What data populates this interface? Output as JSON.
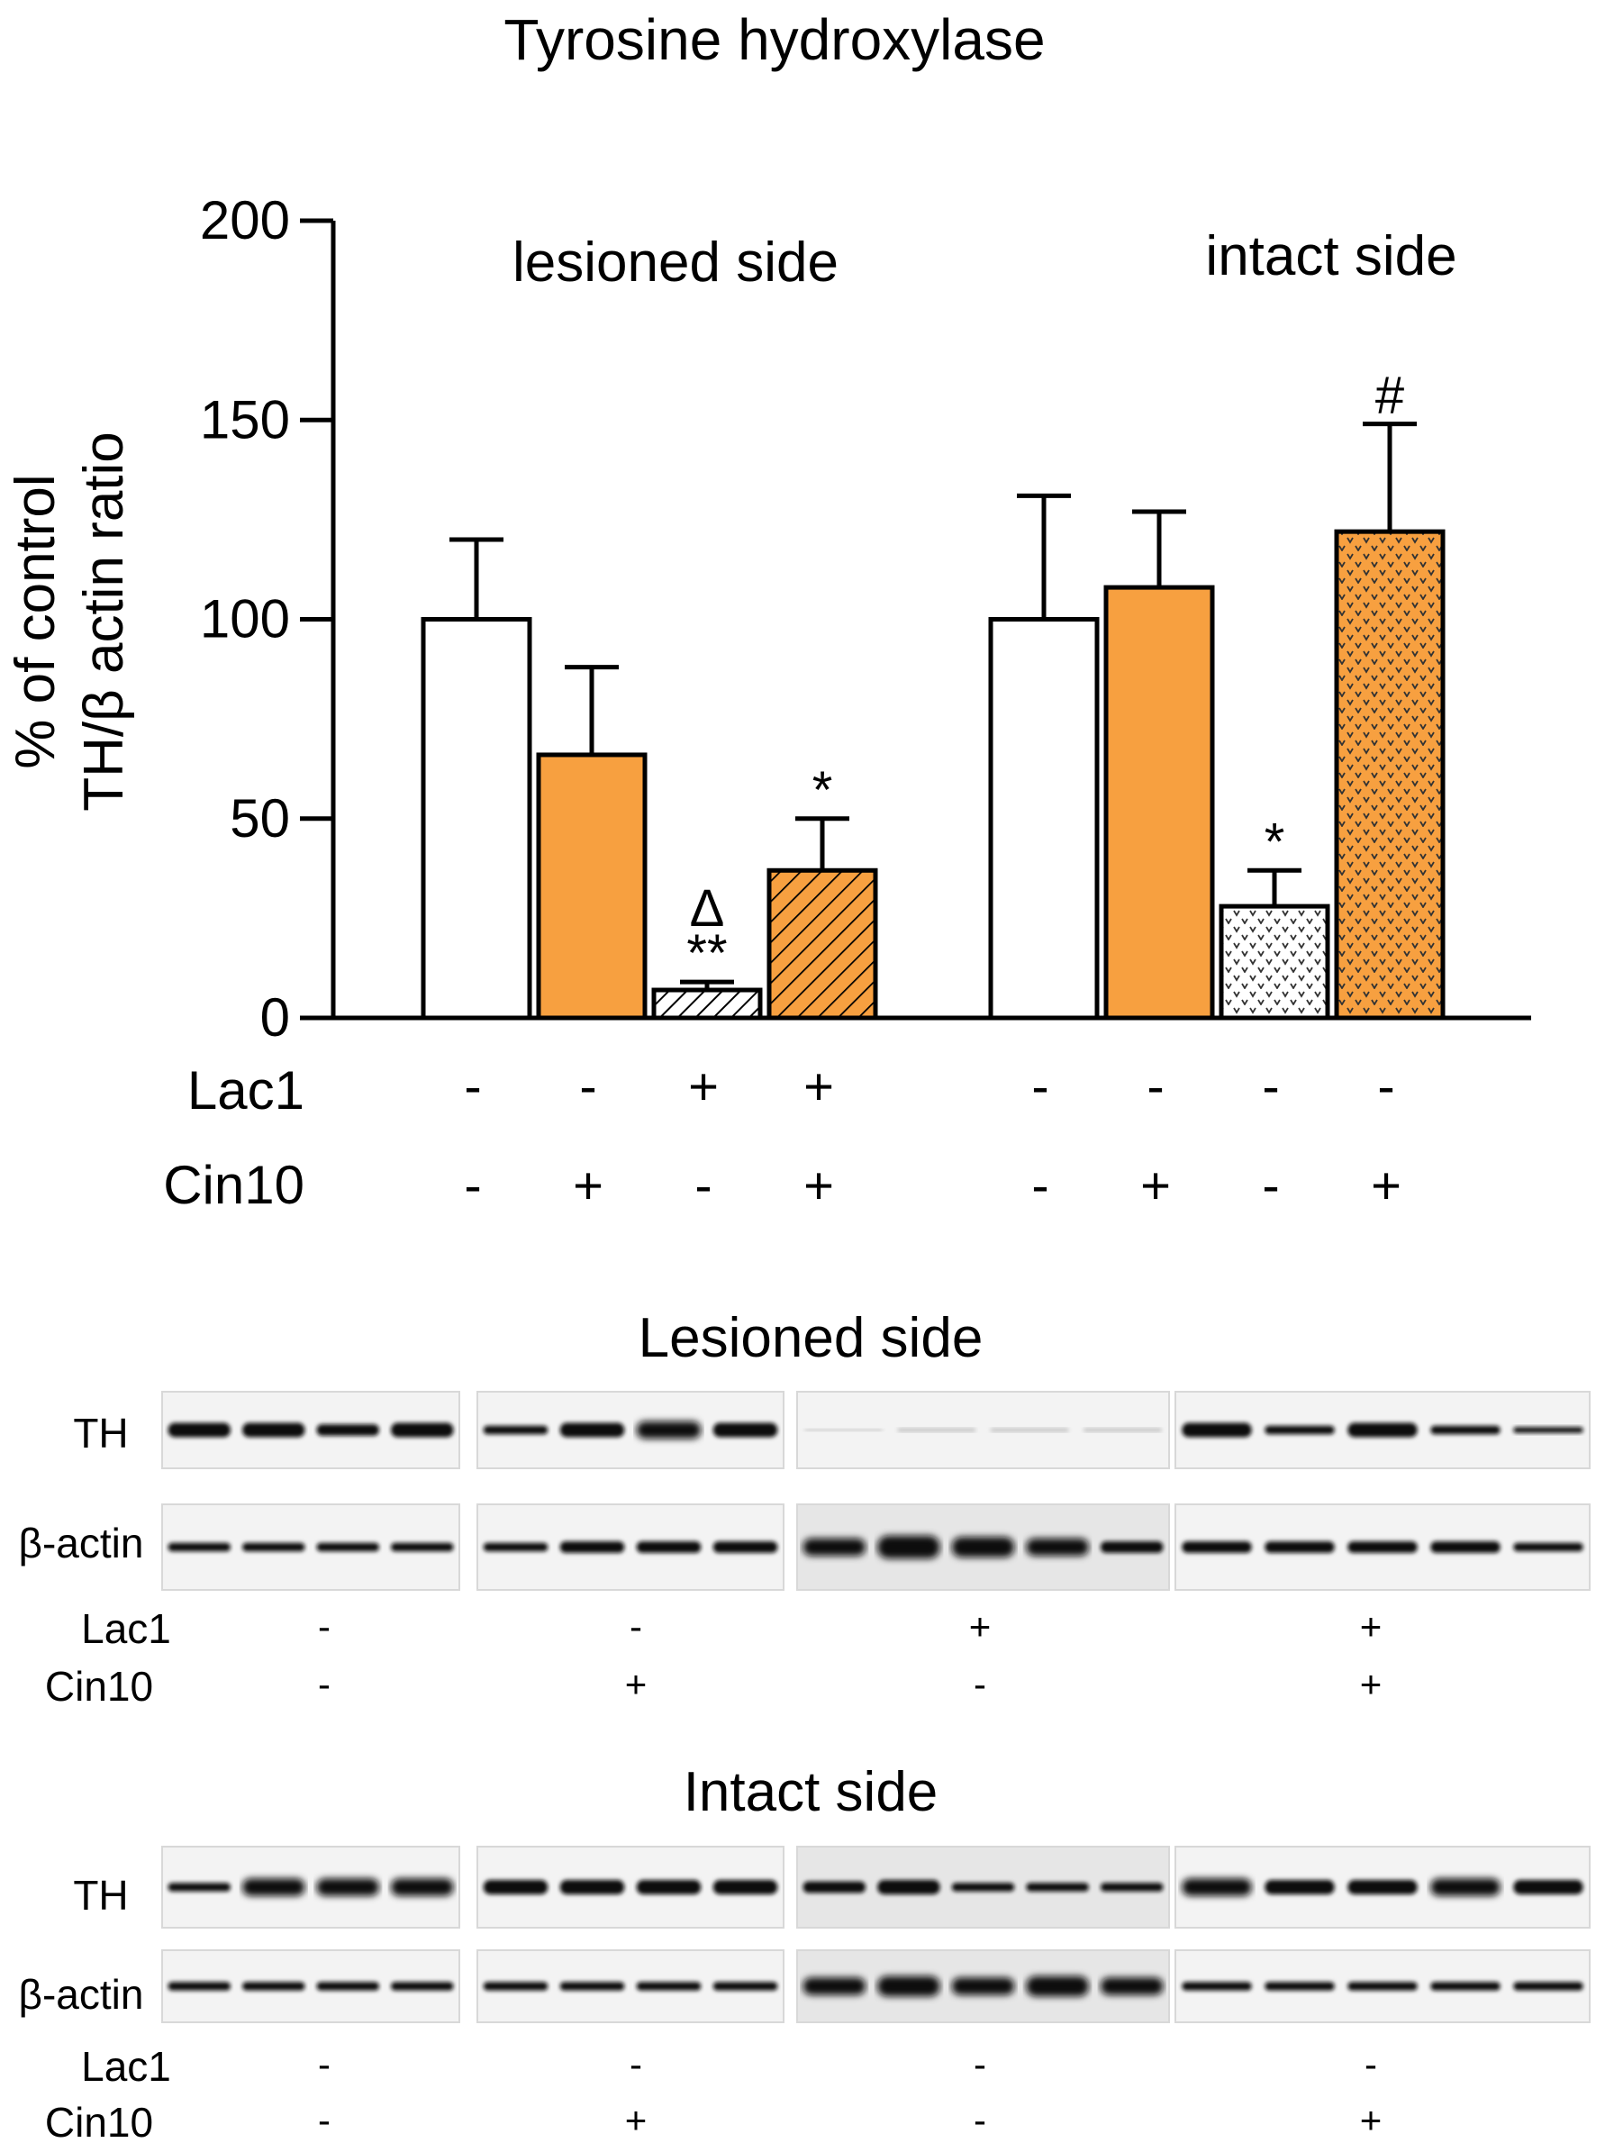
{
  "chart_data": {
    "type": "bar",
    "title": "Tyrosine hydroxylase",
    "ylabel": [
      "% of control",
      "TH/β actin ratio"
    ],
    "ylim": [
      0,
      200
    ],
    "yticks": [
      0,
      50,
      100,
      150,
      200
    ],
    "grid": false,
    "groups": [
      {
        "label": "lesioned side",
        "bars": [
          {
            "value": 100,
            "error": 20,
            "color": "#ffffff",
            "pattern": "none",
            "lac1": "-",
            "cin10": "-",
            "sig": ""
          },
          {
            "value": 66,
            "error": 22,
            "color": "#f7a040",
            "pattern": "none",
            "lac1": "-",
            "cin10": "+",
            "sig": ""
          },
          {
            "value": 7,
            "error": 2,
            "color": "#ffffff",
            "pattern": "diagonal",
            "lac1": "+",
            "cin10": "-",
            "sig": "**",
            "sig2": "Δ"
          },
          {
            "value": 37,
            "error": 13,
            "color": "#f7a040",
            "pattern": "diagonal",
            "lac1": "+",
            "cin10": "+",
            "sig": "*"
          }
        ]
      },
      {
        "label": "intact side",
        "bars": [
          {
            "value": 100,
            "error": 31,
            "color": "#ffffff",
            "pattern": "none",
            "lac1": "-",
            "cin10": "-",
            "sig": ""
          },
          {
            "value": 108,
            "error": 19,
            "color": "#f7a040",
            "pattern": "none",
            "lac1": "-",
            "cin10": "+",
            "sig": ""
          },
          {
            "value": 28,
            "error": 9,
            "color": "#ffffff",
            "pattern": "dots",
            "lac1": "-",
            "cin10": "-",
            "sig": "*"
          },
          {
            "value": 122,
            "error": 27,
            "color": "#f7a040",
            "pattern": "dots",
            "lac1": "-",
            "cin10": "+",
            "sig": "#"
          }
        ]
      }
    ],
    "row_labels": {
      "lac1": "Lac1",
      "cin10": "Cin10"
    }
  },
  "blots": [
    {
      "title": "Lesioned side",
      "rows": [
        "TH",
        "β-actin"
      ],
      "lac1": [
        "-",
        "-",
        "+",
        "+"
      ],
      "cin10": [
        "-",
        "+",
        "-",
        "+"
      ],
      "lac1_label": "Lac1",
      "cin10_label": "Cin10"
    },
    {
      "title": "Intact side",
      "rows": [
        "TH",
        "β-actin"
      ],
      "lac1": [
        "-",
        "-",
        "-",
        "-"
      ],
      "cin10": [
        "-",
        "+",
        "-",
        "+"
      ],
      "lac1_label": "Lac1",
      "cin10_label": "Cin10"
    }
  ]
}
